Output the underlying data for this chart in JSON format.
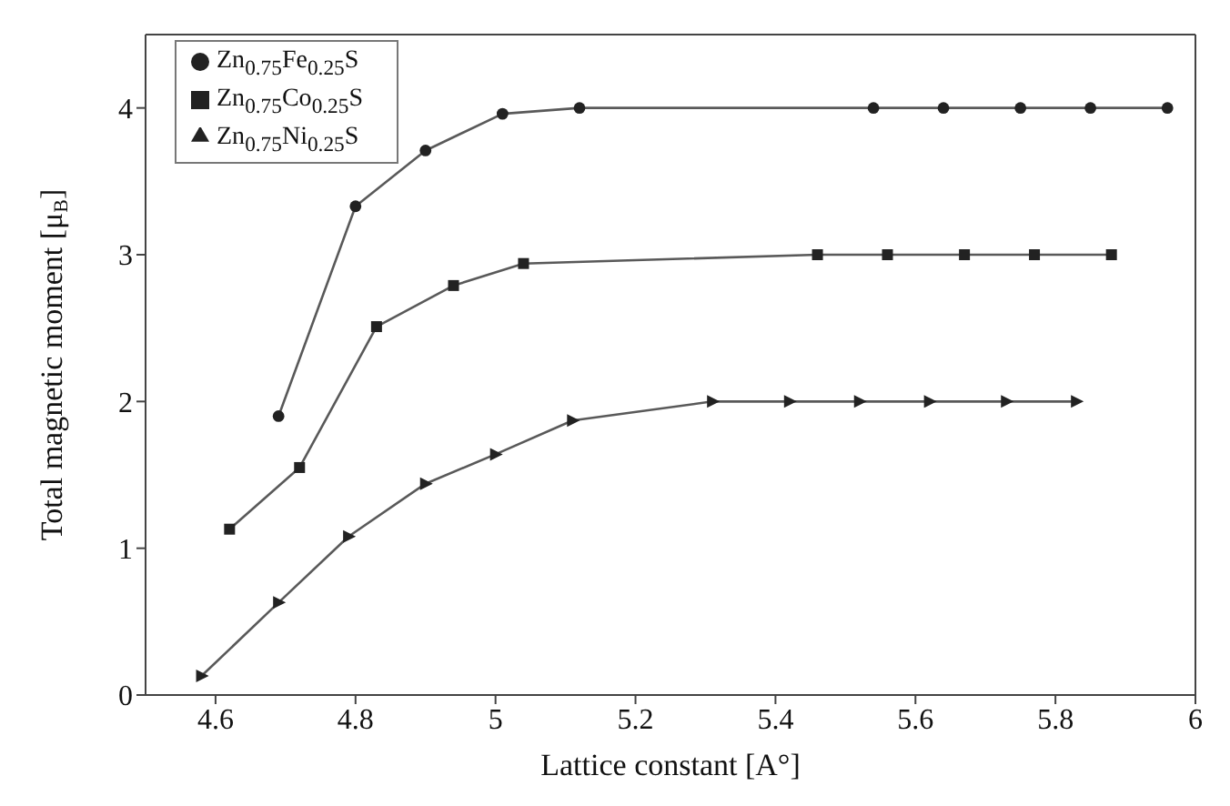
{
  "chart_data": {
    "type": "line",
    "xlabel": "Lattice constant [A°]",
    "ylabel": "Total magnetic moment [μ$_{B}$]",
    "xlim": [
      4.5,
      6
    ],
    "xticks": [
      4.6,
      4.8,
      5,
      5.2,
      5.4,
      5.6,
      5.8,
      6
    ],
    "ylim": [
      0,
      4.5
    ],
    "yticks": [
      0,
      1,
      2,
      3,
      4
    ],
    "legend": "top left",
    "line_style": "solid",
    "series": [
      {
        "name": "Zn$_{0.75}$Fe$_{0.25}$S",
        "color": "#222222",
        "marker": "circle",
        "x": [
          4.69,
          4.8,
          4.9,
          5.01,
          5.12,
          5.54,
          5.64,
          5.75,
          5.85,
          5.96
        ],
        "values": [
          1.9,
          3.33,
          3.71,
          3.96,
          4.0,
          4.0,
          4.0,
          4.0,
          4.0,
          4.0
        ]
      },
      {
        "name": "Zn$_{0.75}$Co$_{0.25}$S",
        "color": "#222222",
        "marker": "square",
        "x": [
          4.62,
          4.72,
          4.83,
          4.94,
          5.04,
          5.46,
          5.56,
          5.67,
          5.77,
          5.88
        ],
        "values": [
          1.13,
          1.55,
          2.51,
          2.79,
          2.94,
          3.0,
          3.0,
          3.0,
          3.0,
          3.0
        ]
      },
      {
        "name": "Zn$_{0.75}$Ni$_{0.25}$S",
        "color": "#222222",
        "marker": "triangle",
        "x": [
          4.58,
          4.69,
          4.79,
          4.9,
          5.0,
          5.11,
          5.31,
          5.42,
          5.52,
          5.62,
          5.73,
          5.83
        ],
        "values": [
          0.13,
          0.63,
          1.08,
          1.44,
          1.64,
          1.87,
          2.0,
          2.0,
          2.0,
          2.0,
          2.0,
          2.0
        ]
      }
    ]
  }
}
